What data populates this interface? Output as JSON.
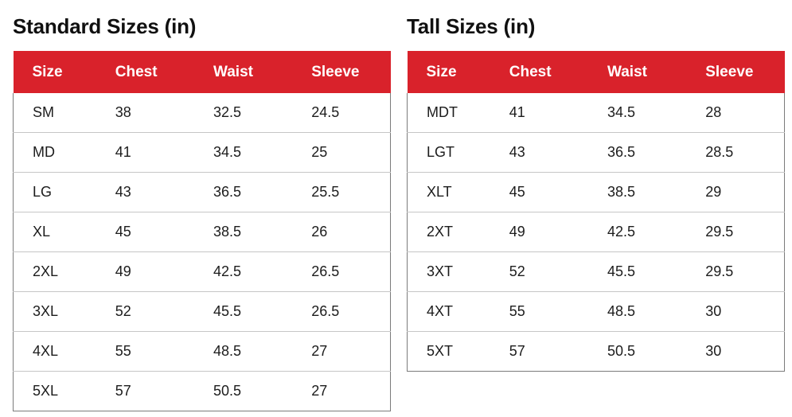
{
  "colors": {
    "header_bg": "#d9222b",
    "header_text": "#ffffff",
    "body_text": "#1c1c1c",
    "outer_border": "#7b7b7b",
    "row_divider": "#c6c6c6"
  },
  "chart_data": [
    {
      "type": "table",
      "title": "Standard Sizes (in)",
      "columns": [
        "Size",
        "Chest",
        "Waist",
        "Sleeve"
      ],
      "rows": [
        [
          "SM",
          38,
          32.5,
          24.5
        ],
        [
          "MD",
          41,
          34.5,
          25
        ],
        [
          "LG",
          43,
          36.5,
          25.5
        ],
        [
          "XL",
          45,
          38.5,
          26
        ],
        [
          "2XL",
          49,
          42.5,
          26.5
        ],
        [
          "3XL",
          52,
          45.5,
          26.5
        ],
        [
          "4XL",
          55,
          48.5,
          27
        ],
        [
          "5XL",
          57,
          50.5,
          27
        ]
      ]
    },
    {
      "type": "table",
      "title": "Tall Sizes (in)",
      "columns": [
        "Size",
        "Chest",
        "Waist",
        "Sleeve"
      ],
      "rows": [
        [
          "MDT",
          41,
          34.5,
          28
        ],
        [
          "LGT",
          43,
          36.5,
          28.5
        ],
        [
          "XLT",
          45,
          38.5,
          29
        ],
        [
          "2XT",
          49,
          42.5,
          29.5
        ],
        [
          "3XT",
          52,
          45.5,
          29.5
        ],
        [
          "4XT",
          55,
          48.5,
          30
        ],
        [
          "5XT",
          57,
          50.5,
          30
        ]
      ]
    }
  ]
}
